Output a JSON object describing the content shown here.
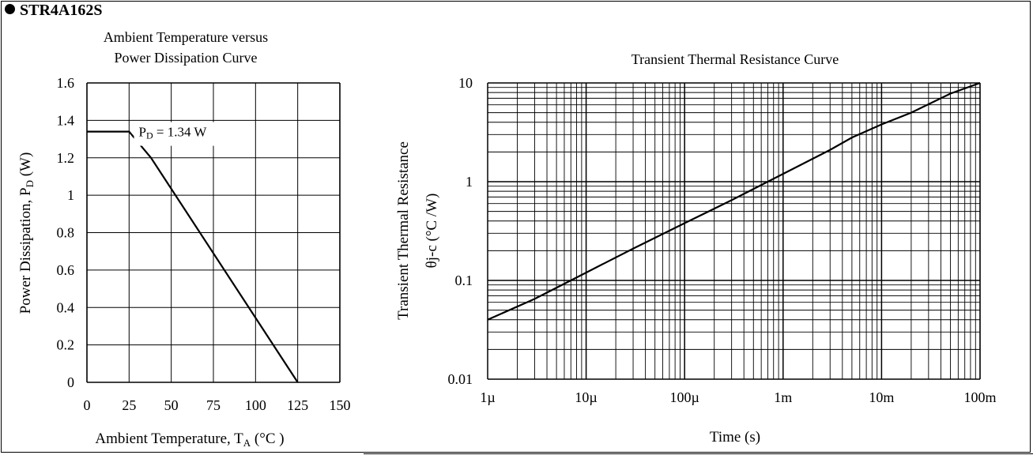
{
  "page": {
    "part_number": "STR4A162S"
  },
  "chart_data": [
    {
      "type": "line",
      "title_line1": "Ambient Temperature versus",
      "title_line2": "Power Dissipation Curve",
      "xlabel": "Ambient Temperature, T",
      "xlabel_sub": "A",
      "xlabel_unit": " (°C )",
      "ylabel": "Power Dissipation, P",
      "ylabel_sub": "D",
      "ylabel_unit": " (W)",
      "xlim": [
        0,
        150
      ],
      "ylim": [
        0,
        1.6
      ],
      "xticks": [
        "0",
        "25",
        "50",
        "75",
        "100",
        "125",
        "150"
      ],
      "yticks": [
        "0",
        "0.2",
        "0.4",
        "0.6",
        "0.8",
        "1",
        "1.2",
        "1.4",
        "1.6"
      ],
      "grid": true,
      "annotation": {
        "label_main": "P",
        "label_sub": "D",
        "label_value": " = 1.34 W"
      },
      "series": [
        {
          "x": [
            0,
            25,
            38,
            125
          ],
          "y": [
            1.34,
            1.34,
            1.2,
            0
          ]
        }
      ]
    },
    {
      "type": "line",
      "title": "Transient Thermal Resistance Curve",
      "xlabel": "Time (s)",
      "ylabel_line1": "Transient Thermal Resistance",
      "ylabel_line2": "θj-c (°C /W)",
      "x_scale": "log",
      "y_scale": "log",
      "xlim": [
        1e-06,
        0.1
      ],
      "ylim": [
        0.01,
        10
      ],
      "xticks": [
        "1µ",
        "10µ",
        "100µ",
        "1m",
        "10m",
        "100m"
      ],
      "yticks": [
        "0.01",
        "0.1",
        "1",
        "10"
      ],
      "grid": true,
      "series": [
        {
          "x": [
            1e-06,
            3e-06,
            1e-05,
            3e-05,
            0.0001,
            0.0003,
            0.001,
            0.003,
            0.005,
            0.01,
            0.02,
            0.05,
            0.1
          ],
          "y": [
            0.04,
            0.065,
            0.12,
            0.21,
            0.38,
            0.65,
            1.2,
            2.1,
            2.8,
            3.8,
            5.0,
            7.8,
            10
          ]
        }
      ]
    }
  ]
}
